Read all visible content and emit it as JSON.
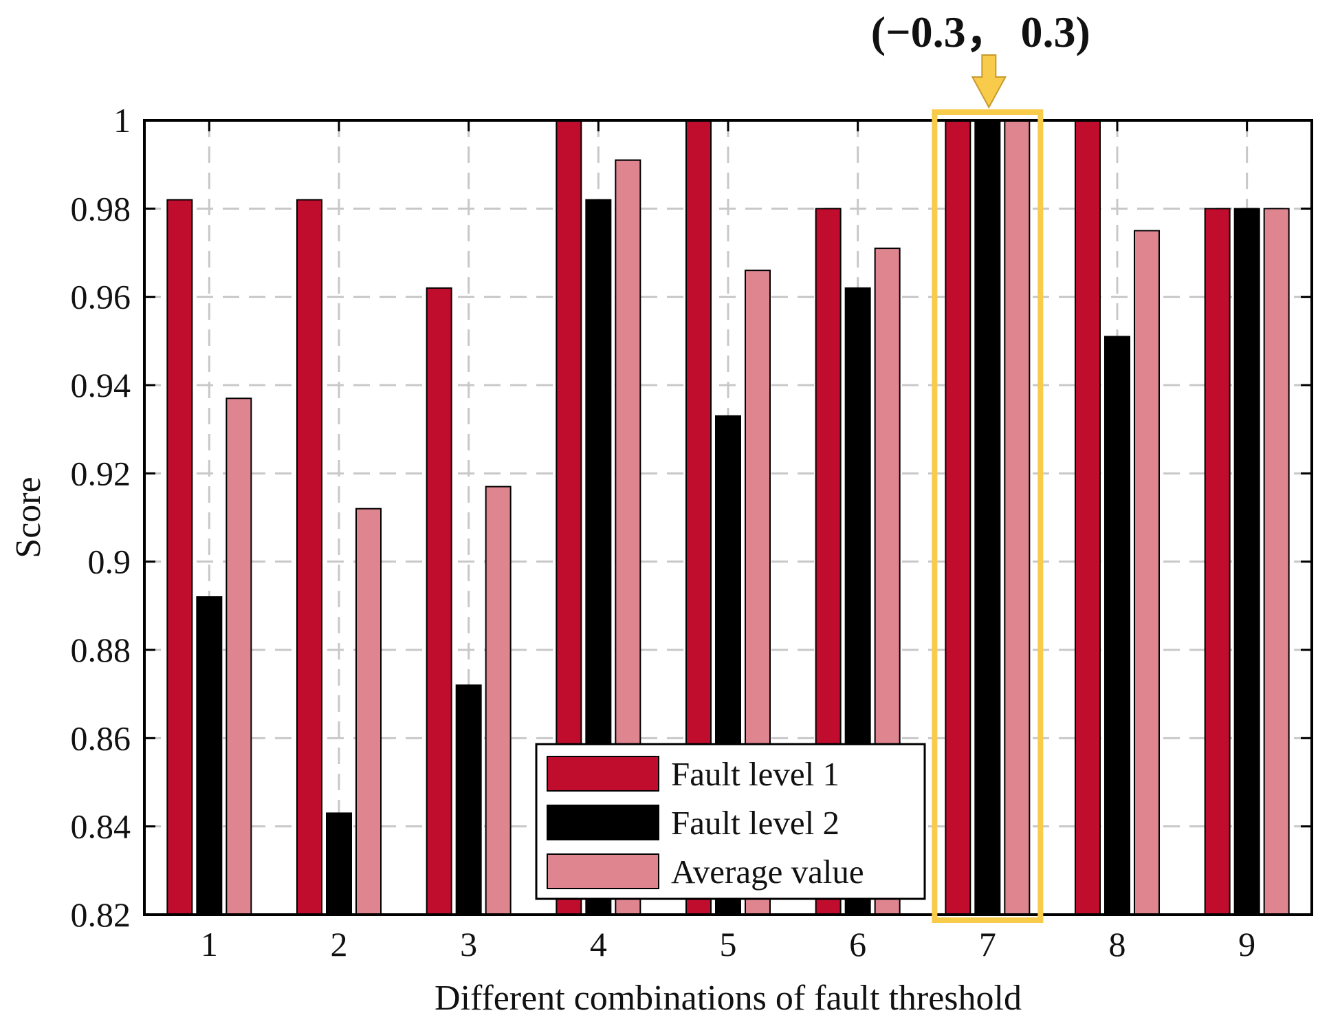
{
  "chart_data": {
    "type": "bar",
    "title": "",
    "xlabel": "Different combinations of fault threshold",
    "ylabel": "Score",
    "ylim": [
      0.82,
      1.0
    ],
    "yticks": [
      0.82,
      0.84,
      0.86,
      0.88,
      0.9,
      0.92,
      0.94,
      0.96,
      0.98,
      1
    ],
    "ytick_labels": [
      "0.82",
      "0.84",
      "0.86",
      "0.88",
      "0.9",
      "0.92",
      "0.94",
      "0.96",
      "0.98",
      "1"
    ],
    "categories": [
      "1",
      "2",
      "3",
      "4",
      "5",
      "6",
      "7",
      "8",
      "9"
    ],
    "grid": true,
    "legend_position": "bottom-center",
    "series": [
      {
        "name": "Fault level 1",
        "color": "#c00d2e",
        "values": [
          0.982,
          0.982,
          0.962,
          1.0,
          1.0,
          0.98,
          1.0,
          1.0,
          0.98
        ]
      },
      {
        "name": "Fault level 2",
        "color": "#000000",
        "values": [
          0.892,
          0.843,
          0.872,
          0.982,
          0.933,
          0.962,
          1.0,
          0.951,
          0.98
        ]
      },
      {
        "name": "Average value",
        "color": "#de8590",
        "values": [
          0.937,
          0.912,
          0.917,
          0.991,
          0.966,
          0.971,
          1.0,
          0.975,
          0.98
        ]
      }
    ],
    "highlight": {
      "category": "7",
      "label": "(−0.3， 0.3)",
      "color": "#f8cc4a"
    }
  }
}
